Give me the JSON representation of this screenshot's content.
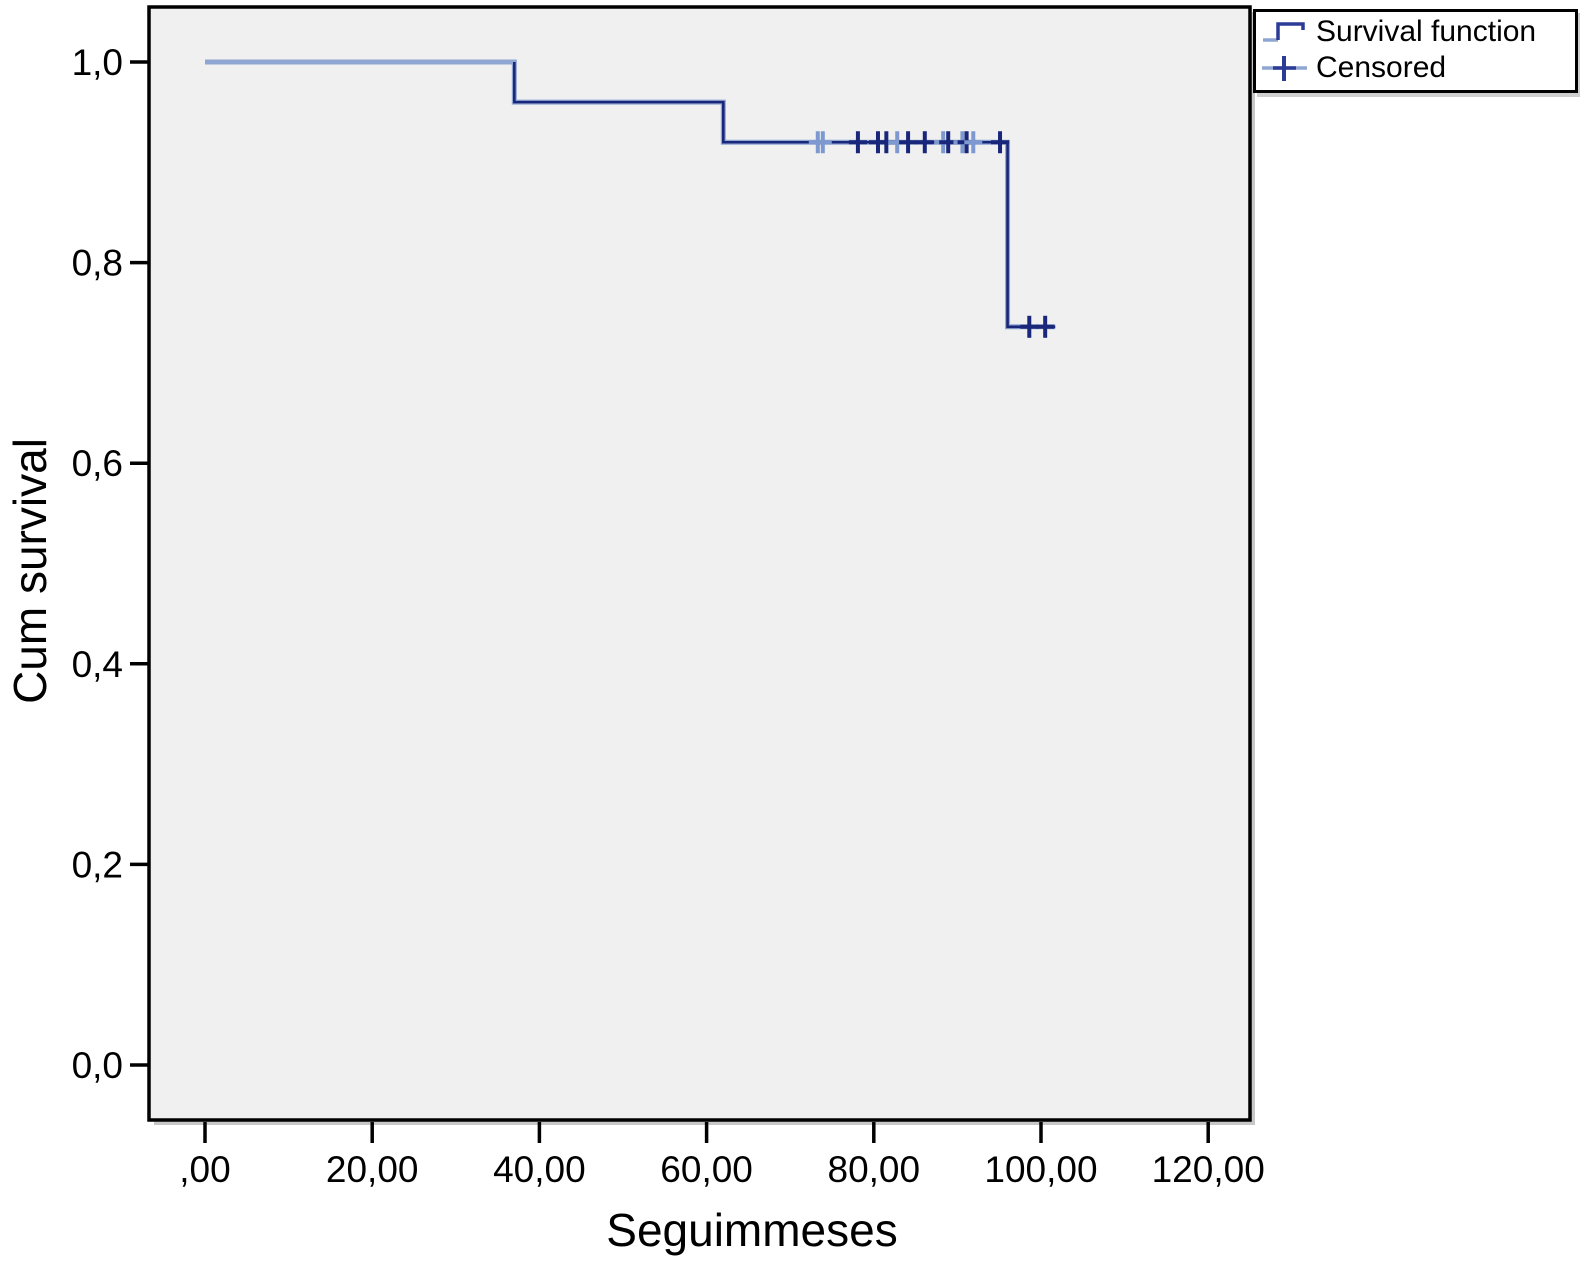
{
  "colors": {
    "line_dark": "#19267a",
    "line_light": "#8fa5d2",
    "censor_light": "#7e99cf",
    "plot_bg": "#f0f0f0",
    "plot_border": "#000000",
    "shadow": "#c7c7c7",
    "text": "#000000",
    "legend_bg": "#ffffff"
  },
  "legend": {
    "items": [
      {
        "label": "Survival function",
        "glyph": "step-line-icon"
      },
      {
        "label": "Censored",
        "glyph": "plus-icon"
      }
    ]
  },
  "chart_data": {
    "type": "line",
    "subtype": "kaplan-meier-step-function",
    "title": "",
    "xlabel": "Seguimmeses",
    "ylabel": "Cum survival",
    "xlim": [
      -7,
      125
    ],
    "ylim": [
      -0.06,
      1.06
    ],
    "grid": false,
    "legend_position": "top-right-outside",
    "x_ticks": [
      {
        "label": ",00",
        "value": 0
      },
      {
        "label": "20,00",
        "value": 20
      },
      {
        "label": "40,00",
        "value": 40
      },
      {
        "label": "60,00",
        "value": 60
      },
      {
        "label": "80,00",
        "value": 80
      },
      {
        "label": "100,00",
        "value": 100
      },
      {
        "label": "120,00",
        "value": 120
      }
    ],
    "y_ticks": [
      {
        "label": "0,0",
        "value": 0.0
      },
      {
        "label": "0,2",
        "value": 0.2
      },
      {
        "label": "0,4",
        "value": 0.4
      },
      {
        "label": "0,6",
        "value": 0.6
      },
      {
        "label": "0,8",
        "value": 0.8
      },
      {
        "label": "1,0",
        "value": 1.0
      }
    ],
    "survival_steps": [
      {
        "x": 0,
        "y": 1.0
      },
      {
        "x": 37,
        "y": 1.0
      },
      {
        "x": 37,
        "y": 0.96
      },
      {
        "x": 62,
        "y": 0.96
      },
      {
        "x": 62,
        "y": 0.92
      },
      {
        "x": 96,
        "y": 0.92
      },
      {
        "x": 96,
        "y": 0.736
      },
      {
        "x": 101.7,
        "y": 0.736
      }
    ],
    "censored": [
      {
        "x": 73.3,
        "y": 0.92,
        "shade": "light"
      },
      {
        "x": 73.9,
        "y": 0.92,
        "shade": "light"
      },
      {
        "x": 78.1,
        "y": 0.92,
        "shade": "dark"
      },
      {
        "x": 80.5,
        "y": 0.92,
        "shade": "dark"
      },
      {
        "x": 81.5,
        "y": 0.92,
        "shade": "dark"
      },
      {
        "x": 82.8,
        "y": 0.92,
        "shade": "light"
      },
      {
        "x": 84.1,
        "y": 0.92,
        "shade": "dark"
      },
      {
        "x": 86.1,
        "y": 0.92,
        "shade": "dark"
      },
      {
        "x": 88.3,
        "y": 0.92,
        "shade": "light"
      },
      {
        "x": 88.9,
        "y": 0.92,
        "shade": "dark"
      },
      {
        "x": 90.6,
        "y": 0.92,
        "shade": "light"
      },
      {
        "x": 91.1,
        "y": 0.92,
        "shade": "dark"
      },
      {
        "x": 91.9,
        "y": 0.92,
        "shade": "light"
      },
      {
        "x": 95.1,
        "y": 0.92,
        "shade": "dark"
      },
      {
        "x": 98.6,
        "y": 0.736,
        "shade": "dark"
      },
      {
        "x": 100.5,
        "y": 0.736,
        "shade": "dark"
      }
    ]
  }
}
